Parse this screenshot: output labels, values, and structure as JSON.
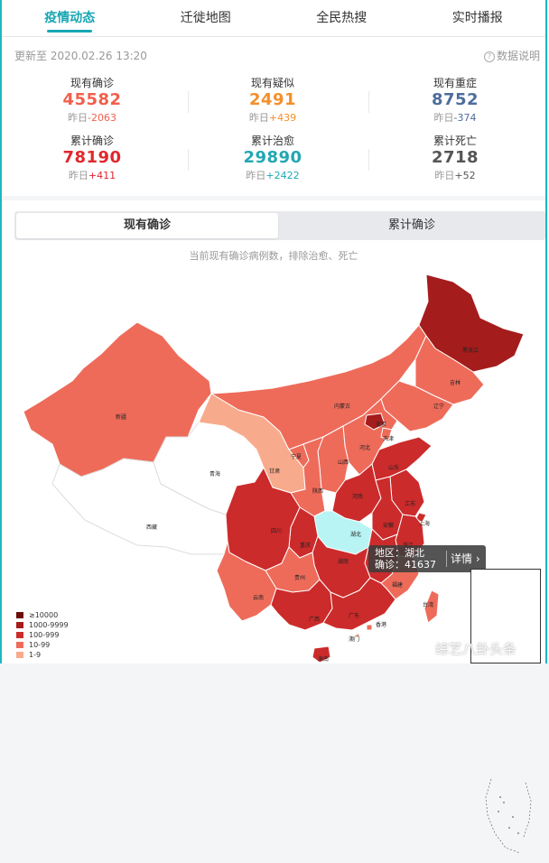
{
  "tabs": [
    "疫情动态",
    "迁徙地图",
    "全民热搜",
    "实时播报"
  ],
  "header": {
    "updated": "更新至 2020.02.26 13:20",
    "explain": "数据说明"
  },
  "stats": [
    {
      "label": "现有确诊",
      "value": "45582",
      "delta": "昨日-2063",
      "color": "#f0604d",
      "help": true
    },
    {
      "label": "现有疑似",
      "value": "2491",
      "delta": "昨日+439",
      "color": "#f58e2a",
      "help": true
    },
    {
      "label": "现有重症",
      "value": "8752",
      "delta": "昨日-374",
      "color": "#4e6d9c",
      "help": false
    },
    {
      "label": "累计确诊",
      "value": "78190",
      "delta": "昨日+411",
      "color": "#e0272d",
      "help": false
    },
    {
      "label": "累计治愈",
      "value": "29890",
      "delta": "昨日+2422",
      "color": "#22a8b2",
      "help": false
    },
    {
      "label": "累计死亡",
      "value": "2718",
      "delta": "昨日+52",
      "color": "#555555",
      "help": false
    }
  ],
  "map_panel": {
    "tab_current": "现有确诊",
    "tab_total": "累计确诊",
    "subtitle": "当前现有确诊病例数，排除治愈、死亡"
  },
  "tooltip": {
    "region": "地区：湖北",
    "count": "确诊：41637",
    "detail": "详情 ›"
  },
  "legend": [
    {
      "label": "≥10000",
      "color": "#6e0a0a"
    },
    {
      "label": "1000-9999",
      "color": "#a51c1c"
    },
    {
      "label": "100-999",
      "color": "#cc2b2b"
    },
    {
      "label": "10-99",
      "color": "#ee6b5a"
    },
    {
      "label": "1-9",
      "color": "#f8ab8c"
    }
  ],
  "provinces": [
    "新疆",
    "西藏",
    "青海",
    "甘肃",
    "内蒙古",
    "黑龙江",
    "吉林",
    "辽宁",
    "北京",
    "天津",
    "河北",
    "山西",
    "陕西",
    "宁夏",
    "山东",
    "河南",
    "江苏",
    "安徽",
    "湖北",
    "四川",
    "重庆",
    "湖南",
    "江西",
    "上海",
    "浙江",
    "福建",
    "贵州",
    "云南",
    "广西",
    "广东",
    "香港",
    "澳门",
    "台湾",
    "海南"
  ],
  "watermark": "综艺八卦头条"
}
